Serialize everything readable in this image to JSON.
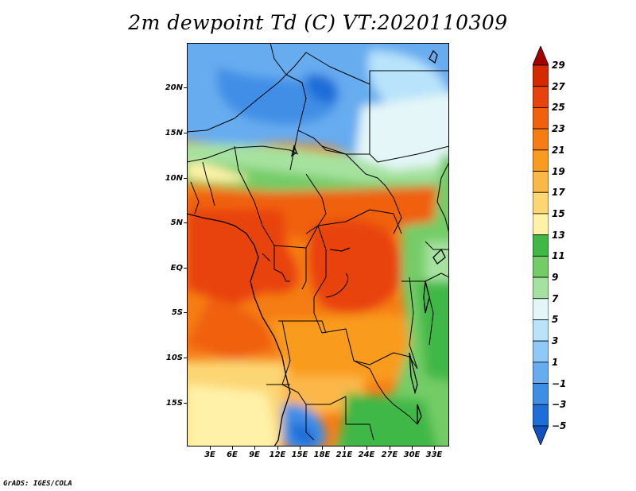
{
  "title": "2m dewpoint Td (C) VT:2020110309",
  "credit": "GrADS: IGES/COLA",
  "map": {
    "lat_labels": [
      "20N",
      "15N",
      "10N",
      "5N",
      "EQ",
      "5S",
      "10S",
      "15S"
    ],
    "lon_labels": [
      "3E",
      "6E",
      "9E",
      "12E",
      "15E",
      "18E",
      "21E",
      "24E",
      "27E",
      "30E",
      "33E"
    ],
    "lon_range": [
      0,
      35
    ],
    "lat_range": [
      -20,
      25
    ]
  },
  "colorbar": {
    "labels": [
      "29",
      "27",
      "25",
      "23",
      "21",
      "19",
      "17",
      "15",
      "13",
      "11",
      "9",
      "7",
      "5",
      "3",
      "1",
      "−1",
      "−3",
      "−5"
    ],
    "colors": [
      "#a50000",
      "#d42a00",
      "#e8420f",
      "#f0600f",
      "#f57d14",
      "#f99b1f",
      "#fbb848",
      "#fcd673",
      "#fff2a8",
      "#3fb846",
      "#73cc66",
      "#a6e29f",
      "#e4f6f8",
      "#b8e3fb",
      "#8fc9f7",
      "#66acef",
      "#3f8ee6",
      "#1f6dd8",
      "#1050c0"
    ]
  }
}
